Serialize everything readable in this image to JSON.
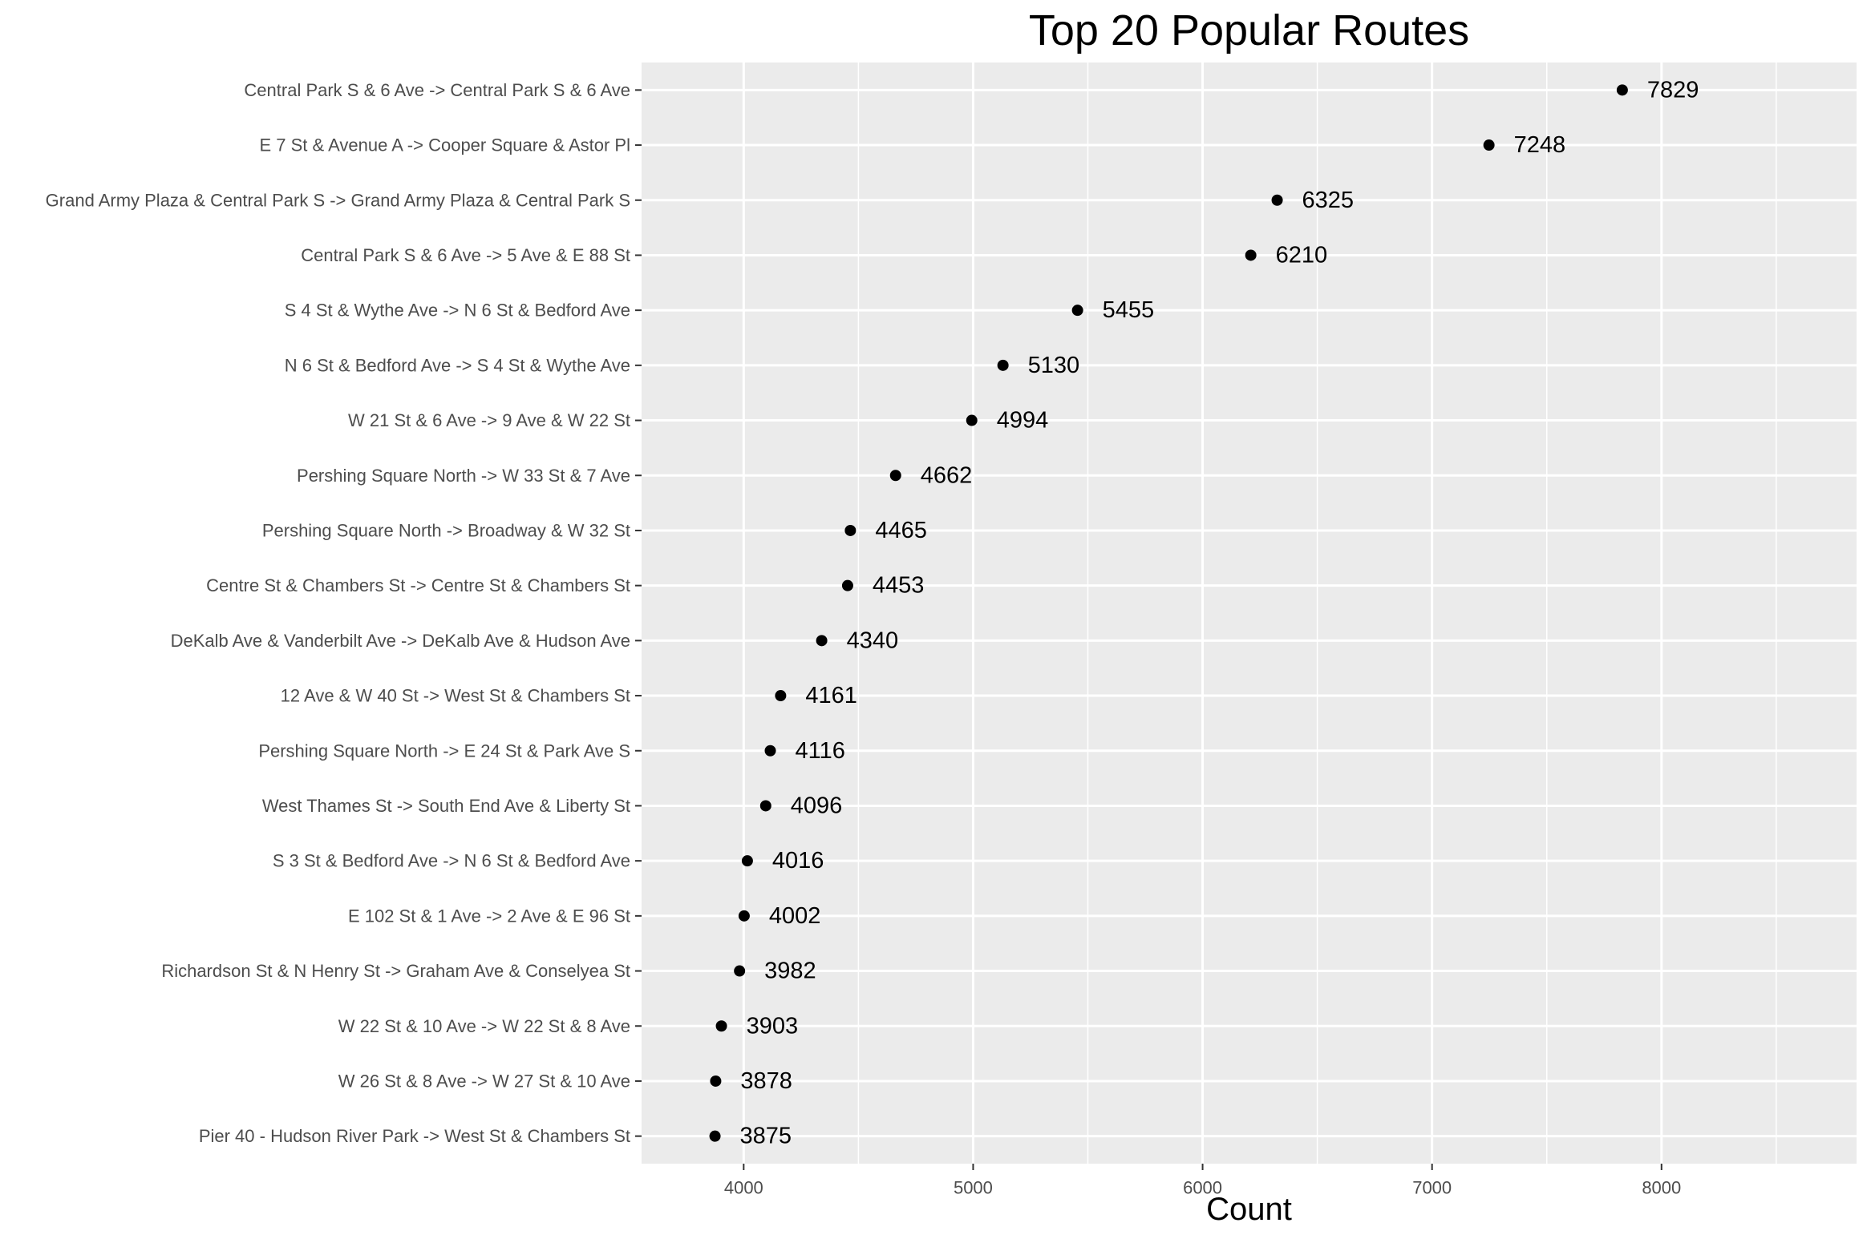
{
  "chart_data": {
    "type": "scatter",
    "title": "Top 20 Popular Routes",
    "xlabel": "Count",
    "ylabel": "",
    "xlim": [
      3555,
      8850
    ],
    "x_ticks": [
      4000,
      5000,
      6000,
      7000,
      8000
    ],
    "grid": true,
    "legend": "none",
    "colors": {
      "panel": "#ebebeb",
      "grid": "#ffffff",
      "point": "#000000",
      "tick_text": "#4d4d4d"
    },
    "categories": [
      "Central Park S & 6 Ave -> Central Park S & 6 Ave",
      "E 7 St & Avenue A -> Cooper Square & Astor Pl",
      "Grand Army Plaza & Central Park S -> Grand Army Plaza & Central Park S",
      "Central Park S & 6 Ave -> 5 Ave & E 88 St",
      "S 4 St & Wythe Ave -> N 6 St & Bedford Ave",
      "N 6 St & Bedford Ave -> S 4 St & Wythe Ave",
      "W 21 St & 6 Ave -> 9 Ave & W 22 St",
      "Pershing Square North -> W 33 St & 7 Ave",
      "Pershing Square North -> Broadway & W 32 St",
      "Centre St & Chambers St -> Centre St & Chambers St",
      "DeKalb Ave & Vanderbilt Ave -> DeKalb Ave & Hudson Ave",
      "12 Ave & W 40 St -> West St & Chambers St",
      "Pershing Square North -> E 24 St & Park Ave S",
      "West Thames St -> South End Ave & Liberty St",
      "S 3 St & Bedford Ave -> N 6 St & Bedford Ave",
      "E 102 St & 1 Ave -> 2 Ave & E 96 St",
      "Richardson St & N Henry St -> Graham Ave & Conselyea St",
      "W 22 St & 10 Ave -> W 22 St & 8 Ave",
      "W 26 St & 8 Ave -> W 27 St & 10 Ave",
      "Pier 40 - Hudson River Park -> West St & Chambers St"
    ],
    "values": [
      7829,
      7248,
      6325,
      6210,
      5455,
      5130,
      4994,
      4662,
      4465,
      4453,
      4340,
      4161,
      4116,
      4096,
      4016,
      4002,
      3982,
      3903,
      3878,
      3875
    ]
  }
}
